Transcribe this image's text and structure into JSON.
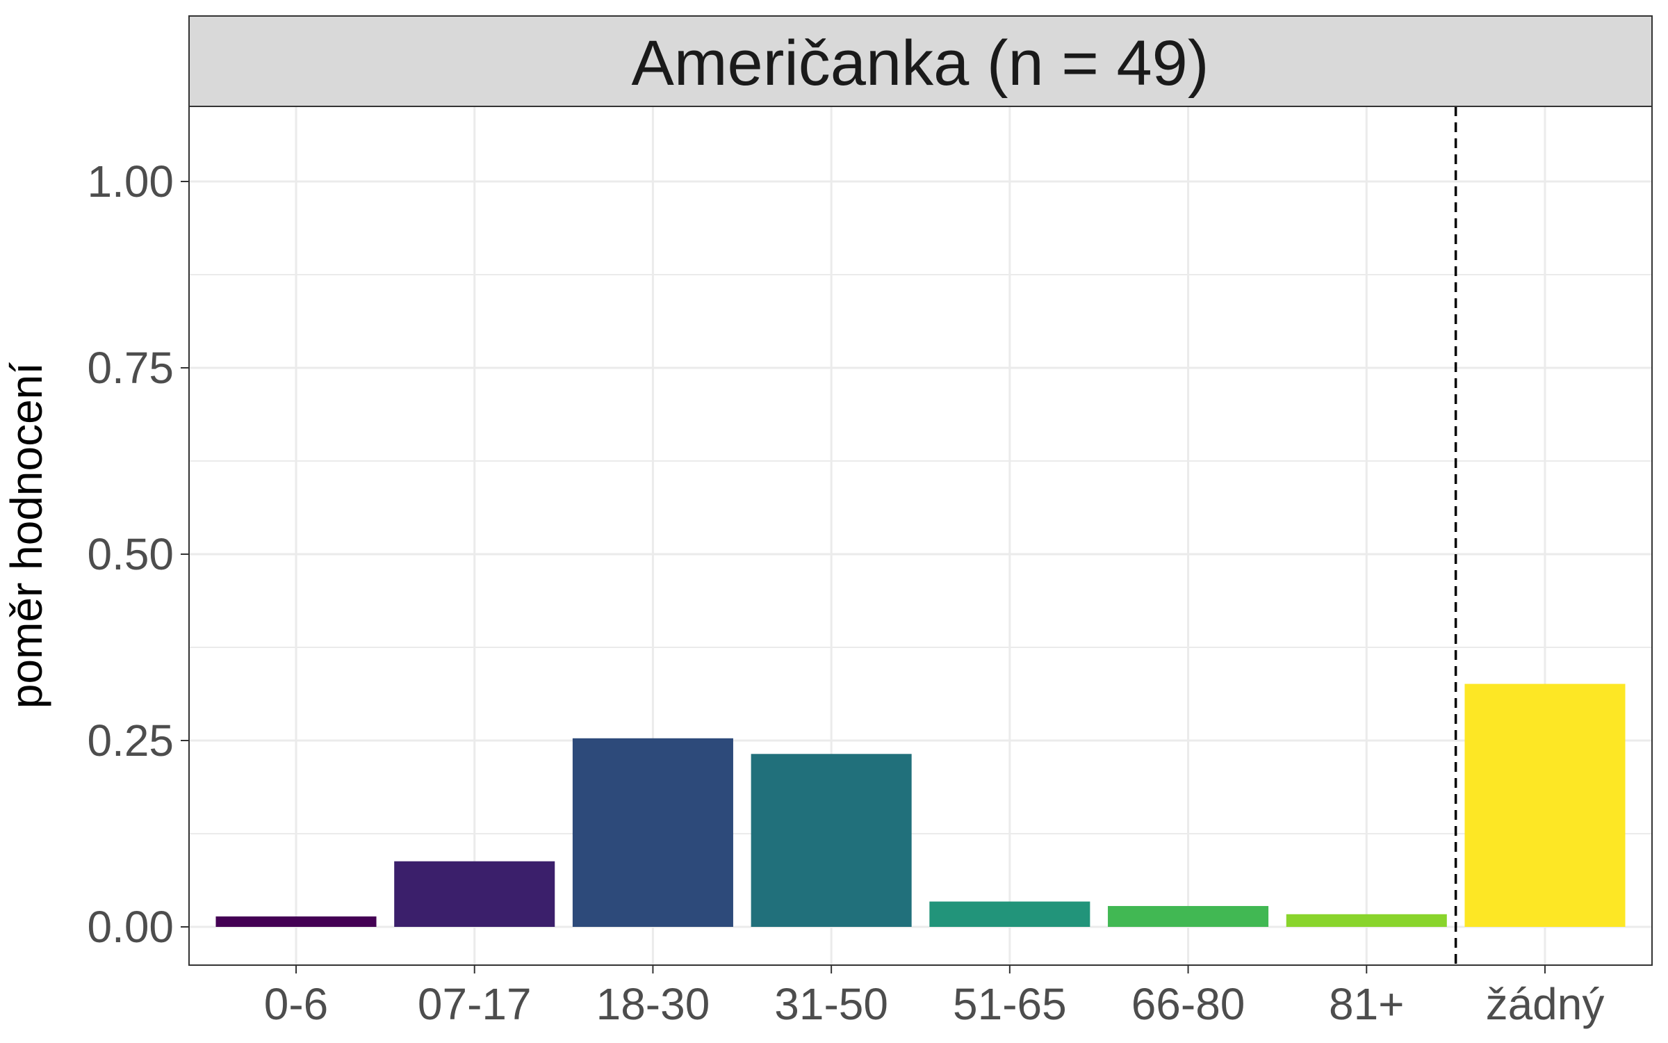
{
  "chart_data": {
    "type": "bar",
    "title": "Američanka (n = 49)",
    "xlabel": "",
    "ylabel": "poměr hodnocení",
    "categories": [
      "0-6",
      "07-17",
      "18-30",
      "31-50",
      "51-65",
      "66-80",
      "81+",
      "žádný"
    ],
    "values": [
      0.014,
      0.088,
      0.253,
      0.232,
      0.034,
      0.028,
      0.017,
      0.326
    ],
    "colors": [
      "#440154",
      "#3b1f6b",
      "#2d4a7a",
      "#21707b",
      "#22947a",
      "#41b853",
      "#89d42c",
      "#fde725"
    ],
    "ylim": [
      -0.05,
      1.1
    ],
    "yticks": [
      "0.00",
      "0.25",
      "0.50",
      "0.75",
      "1.00"
    ],
    "ytick_values": [
      0,
      0.25,
      0.5,
      0.75,
      1.0
    ],
    "separator_after_category": "81+",
    "grid": true,
    "legend": "none"
  }
}
